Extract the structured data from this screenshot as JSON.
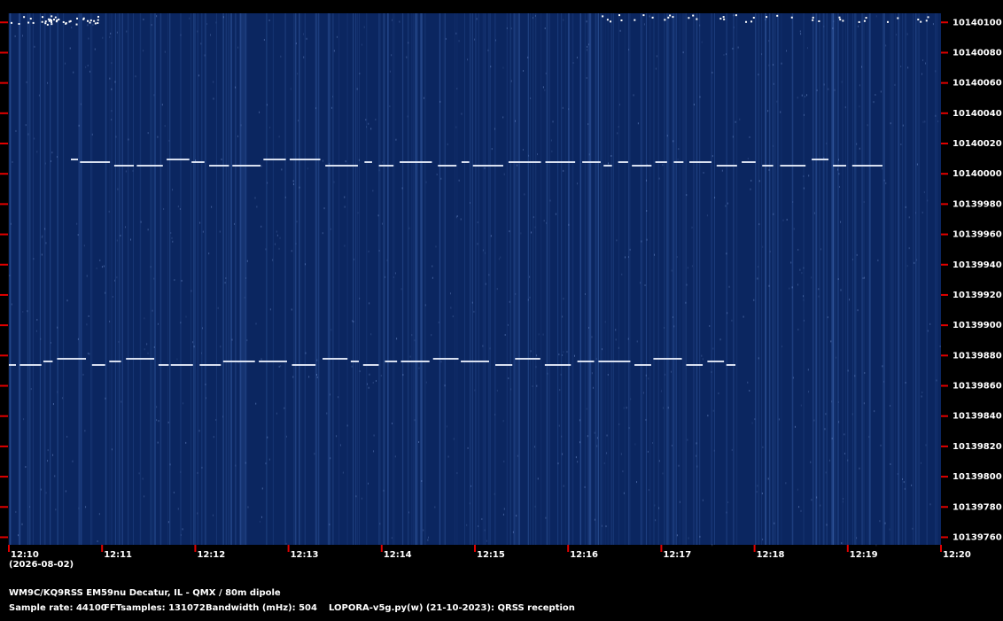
{
  "chart_data": {
    "type": "spectrogram",
    "ylim": [
      10139755,
      10140106
    ],
    "yticks": [
      10140100,
      10140080,
      10140060,
      10140040,
      10140020,
      10140000,
      10139980,
      10139960,
      10139940,
      10139920,
      10139900,
      10139880,
      10139860,
      10139840,
      10139820,
      10139800,
      10139780,
      10139760
    ],
    "x_labels": [
      "12:10",
      "12:11",
      "12:12",
      "12:13",
      "12:14",
      "12:15",
      "12:16",
      "12:17",
      "12:18",
      "12:19",
      "12:20"
    ],
    "date": "(2026-08-02)",
    "station": "WM9C/KQ9RSS EM59nu Decatur, IL - QMX / 80m dipole",
    "sample_rate": "Sample rate: 44100",
    "fft_samples": "FFTsamples: 131072",
    "bandwidth": "Bandwidth (mHz): 504",
    "software": "LOPORA-v5g.py(w) (21-10-2023): QRSS reception",
    "tick_color": "#e00000",
    "background_color": "#0b2660"
  }
}
